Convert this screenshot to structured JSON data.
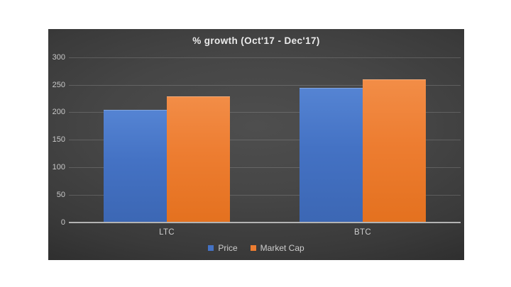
{
  "page": {
    "background": "#ffffff"
  },
  "chart": {
    "background_center": "#4e4e4e",
    "background_edge": "#1c1c1c",
    "title_color": "#ebebeb",
    "tick_label_color": "#c9c9c9",
    "category_label_color": "#cdcdcd",
    "gridline_color": "rgba(255,255,255,0.16)",
    "axis_line_color": "#b3b3b3"
  },
  "chart_data": {
    "type": "bar",
    "title": "% growth  (Oct'17 - Dec'17)",
    "categories": [
      "LTC",
      "BTC"
    ],
    "series": [
      {
        "name": "Price",
        "color": "#4472C4",
        "values": [
          205,
          244
        ]
      },
      {
        "name": "Market Cap",
        "color": "#ED7D31",
        "values": [
          229,
          260
        ]
      }
    ],
    "xlabel": "",
    "ylabel": "",
    "ylim": [
      0,
      300
    ],
    "yticks": [
      0,
      50,
      100,
      150,
      200,
      250,
      300
    ],
    "grid": true,
    "legend_position": "bottom"
  }
}
